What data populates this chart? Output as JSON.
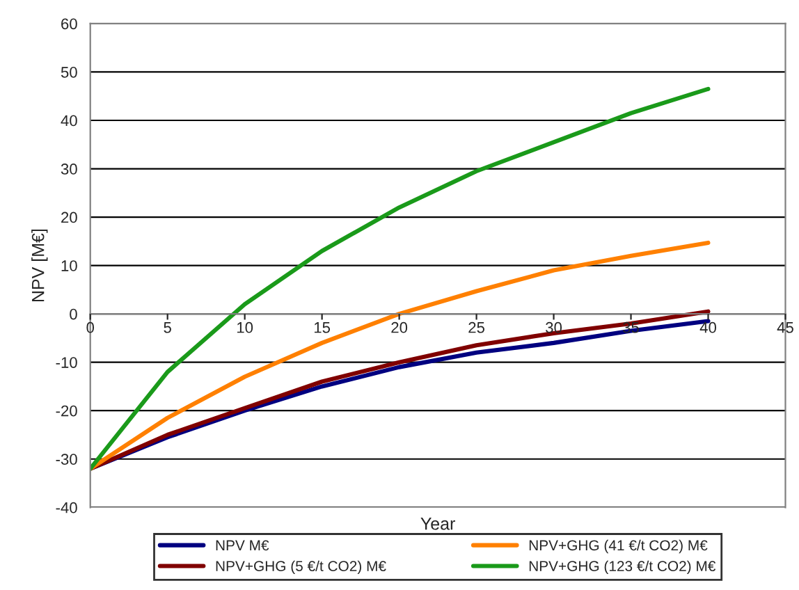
{
  "chart_data": {
    "type": "line",
    "xlabel": "Year",
    "ylabel": "NPV [M€]",
    "xlim": [
      0,
      45
    ],
    "xticks": [
      0,
      5,
      10,
      15,
      20,
      25,
      30,
      35,
      40,
      45
    ],
    "ylim": [
      -40,
      60
    ],
    "yticks": [
      -40,
      -30,
      -20,
      -10,
      0,
      10,
      20,
      30,
      40,
      50,
      60
    ],
    "grid": "y",
    "legend": "bottom",
    "marker": "none",
    "line_style": "solid",
    "x": [
      0,
      5,
      10,
      15,
      20,
      25,
      30,
      35,
      40
    ],
    "series": [
      {
        "name": "NPV M€",
        "color": "#000080",
        "values": [
          -32,
          -25.5,
          -20,
          -15,
          -11,
          -8,
          -6,
          -3.5,
          -1.5
        ]
      },
      {
        "name": "NPV+GHG (5 €/t CO2) M€",
        "color": "#800000",
        "values": [
          -32,
          -25,
          -19.5,
          -14,
          -10,
          -6.5,
          -4,
          -2,
          0.5
        ]
      },
      {
        "name": "NPV+GHG (41 €/t CO2) M€",
        "color": "#ff8000",
        "values": [
          -32,
          -21.5,
          -13,
          -6,
          0,
          4.7,
          9,
          12,
          14.7
        ]
      },
      {
        "name": "NPV+GHG (123 €/t CO2) M€",
        "color": "#1a9a1a",
        "values": [
          -32,
          -12,
          2,
          13,
          22,
          29.5,
          35.5,
          41.5,
          46.5
        ]
      }
    ]
  }
}
